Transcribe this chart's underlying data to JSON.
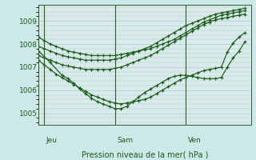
{
  "bg_color": "#cce8e8",
  "plot_bg_color": "#daeaea",
  "grid_color": "#aacccc",
  "line_color": "#1a5c1a",
  "title": "Pression niveau de la mer( hPa )",
  "xlabel_jeu": "Jeu",
  "xlabel_sam": "Sam",
  "xlabel_ven": "Ven",
  "ylim": [
    1004.5,
    1009.7
  ],
  "yticks": [
    1005,
    1006,
    1007,
    1008,
    1009
  ],
  "xlim": [
    0,
    36
  ],
  "x_jeu": 1,
  "x_sam": 13,
  "x_ven": 25,
  "series": [
    {
      "x": [
        0,
        1,
        2,
        3,
        4,
        5,
        6,
        7,
        8,
        9,
        10,
        11,
        12,
        13,
        14,
        15,
        16,
        17,
        18,
        19,
        20,
        21,
        22,
        23,
        24,
        25,
        26,
        27,
        28,
        29,
        30,
        31,
        32,
        33,
        34,
        35
      ],
      "y": [
        1008.3,
        1008.15,
        1008.0,
        1007.9,
        1007.8,
        1007.7,
        1007.65,
        1007.6,
        1007.55,
        1007.5,
        1007.5,
        1007.5,
        1007.5,
        1007.5,
        1007.55,
        1007.6,
        1007.65,
        1007.7,
        1007.75,
        1007.8,
        1007.9,
        1008.0,
        1008.1,
        1008.2,
        1008.35,
        1008.5,
        1008.65,
        1008.8,
        1008.95,
        1009.05,
        1009.15,
        1009.25,
        1009.3,
        1009.35,
        1009.4,
        1009.45
      ]
    },
    {
      "x": [
        0,
        1,
        2,
        3,
        4,
        5,
        6,
        7,
        8,
        9,
        10,
        11,
        12,
        13,
        14,
        15,
        16,
        17,
        18,
        19,
        20,
        21,
        22,
        23,
        24,
        25,
        26,
        27,
        28,
        29,
        30,
        31,
        32,
        33,
        34,
        35
      ],
      "y": [
        1007.9,
        1007.8,
        1007.7,
        1007.6,
        1007.5,
        1007.45,
        1007.4,
        1007.35,
        1007.3,
        1007.3,
        1007.3,
        1007.3,
        1007.3,
        1007.35,
        1007.4,
        1007.5,
        1007.6,
        1007.7,
        1007.8,
        1007.9,
        1008.05,
        1008.2,
        1008.35,
        1008.5,
        1008.65,
        1008.8,
        1008.9,
        1009.0,
        1009.1,
        1009.2,
        1009.3,
        1009.35,
        1009.4,
        1009.45,
        1009.5,
        1009.55
      ]
    },
    {
      "x": [
        0,
        1,
        2,
        3,
        4,
        5,
        6,
        7,
        8,
        9,
        10,
        11,
        12,
        13,
        14,
        15,
        16,
        17,
        18,
        19,
        20,
        21,
        22,
        23,
        24,
        25,
        26,
        27,
        28,
        29,
        30,
        31,
        32,
        33,
        34,
        35
      ],
      "y": [
        1007.5,
        1007.4,
        1007.3,
        1007.2,
        1007.1,
        1007.05,
        1007.0,
        1006.95,
        1006.9,
        1006.9,
        1006.9,
        1006.9,
        1006.9,
        1006.95,
        1007.0,
        1007.1,
        1007.2,
        1007.3,
        1007.4,
        1007.5,
        1007.65,
        1007.8,
        1007.95,
        1008.1,
        1008.25,
        1008.4,
        1008.55,
        1008.7,
        1008.85,
        1008.95,
        1009.05,
        1009.1,
        1009.15,
        1009.2,
        1009.25,
        1009.3
      ]
    },
    {
      "x": [
        0,
        2,
        4,
        5,
        6,
        7,
        8,
        9,
        10,
        11,
        12,
        13,
        14,
        15,
        16,
        17,
        18,
        19,
        20,
        21,
        22,
        23,
        24,
        25,
        26,
        27,
        28,
        29,
        30,
        31,
        32,
        33,
        34,
        35
      ],
      "y": [
        1007.7,
        1007.2,
        1006.65,
        1006.5,
        1006.3,
        1006.05,
        1005.85,
        1005.65,
        1005.5,
        1005.4,
        1005.3,
        1005.2,
        1005.2,
        1005.3,
        1005.5,
        1005.7,
        1005.9,
        1006.05,
        1006.2,
        1006.35,
        1006.5,
        1006.6,
        1006.65,
        1006.65,
        1006.6,
        1006.55,
        1006.5,
        1006.5,
        1006.5,
        1006.55,
        1007.0,
        1007.4,
        1007.7,
        1008.1
      ]
    },
    {
      "x": [
        0,
        1,
        2,
        3,
        4,
        5,
        6,
        7,
        8,
        9,
        10,
        11,
        12,
        13,
        14,
        15,
        16,
        17,
        18,
        19,
        20,
        21,
        22,
        23,
        24,
        25,
        26,
        27,
        28,
        29,
        30,
        31,
        32,
        33,
        34,
        35
      ],
      "y": [
        1007.3,
        1007.1,
        1006.9,
        1006.7,
        1006.55,
        1006.4,
        1006.25,
        1006.1,
        1005.95,
        1005.8,
        1005.7,
        1005.6,
        1005.5,
        1005.45,
        1005.4,
        1005.45,
        1005.5,
        1005.55,
        1005.6,
        1005.7,
        1005.85,
        1006.0,
        1006.15,
        1006.3,
        1006.45,
        1006.55,
        1006.65,
        1006.75,
        1006.85,
        1006.9,
        1006.95,
        1007.0,
        1007.65,
        1008.05,
        1008.3,
        1008.5
      ]
    }
  ]
}
